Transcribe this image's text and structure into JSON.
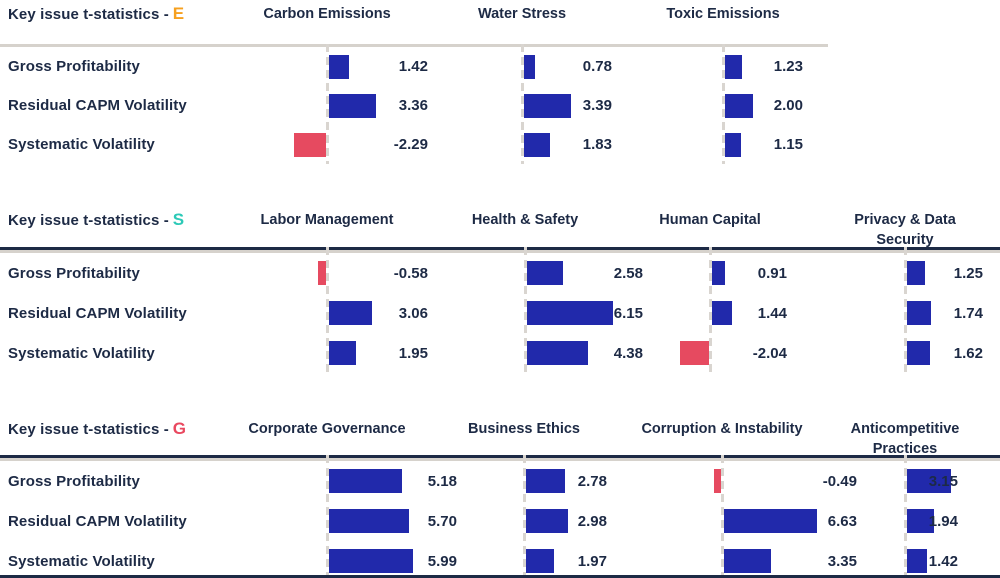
{
  "figure": {
    "name": "ESG key issue t-statistics",
    "background": "#ffffff"
  },
  "colors": {
    "text_navy": "#1d2a45",
    "bar_positive": "#2129ab",
    "bar_negative": "#e64a60",
    "pillar_e": "#f6a01f",
    "pillar_s": "#2cc9b7",
    "pillar_g": "#e9485f",
    "separator_gray": "#d6d2cc",
    "separator_navy": "#1d2a45",
    "baseline_dash": "#d9d5d0"
  },
  "chart_data": [
    {
      "type": "bar",
      "orientation": "horizontal",
      "title": "Key issue t-statistics - E",
      "title_prefix": "Key issue t-statistics -",
      "pillar": "E",
      "pillar_color": "#f6a01f",
      "rows": [
        "Gross Profitability",
        "Residual CAPM Volatility",
        "Systematic Volatility"
      ],
      "columns": [
        "Carbon Emissions",
        "Water Stress",
        "Toxic Emissions"
      ],
      "series": [
        {
          "name": "Carbon Emissions",
          "values": [
            1.42,
            3.36,
            -2.29
          ]
        },
        {
          "name": "Water Stress",
          "values": [
            0.78,
            3.39,
            1.83
          ]
        },
        {
          "name": "Toxic Emissions",
          "values": [
            1.23,
            2.0,
            1.15
          ]
        }
      ],
      "value_labels": [
        [
          "1.42",
          "3.36",
          "-2.29"
        ],
        [
          "0.78",
          "3.39",
          "1.83"
        ],
        [
          "1.23",
          "2.00",
          "1.15"
        ]
      ],
      "zero_baseline": true,
      "grid": "dashed-zero-line-per-column",
      "legend": "none"
    },
    {
      "type": "bar",
      "orientation": "horizontal",
      "title": "Key issue t-statistics - S",
      "title_prefix": "Key issue t-statistics -",
      "pillar": "S",
      "pillar_color": "#2cc9b7",
      "rows": [
        "Gross Profitability",
        "Residual CAPM Volatility",
        "Systematic Volatility"
      ],
      "columns": [
        "Labor Management",
        "Health & Safety",
        "Human Capital",
        "Privacy & Data Security"
      ],
      "series": [
        {
          "name": "Labor Management",
          "values": [
            -0.58,
            3.06,
            1.95
          ]
        },
        {
          "name": "Health & Safety",
          "values": [
            2.58,
            6.15,
            4.38
          ]
        },
        {
          "name": "Human Capital",
          "values": [
            0.91,
            1.44,
            -2.04
          ]
        },
        {
          "name": "Privacy & Data Security",
          "values": [
            1.25,
            1.74,
            1.62
          ]
        }
      ],
      "value_labels": [
        [
          "-0.58",
          "3.06",
          "1.95"
        ],
        [
          "2.58",
          "6.15",
          "4.38"
        ],
        [
          "0.91",
          "1.44",
          "-2.04"
        ],
        [
          "1.25",
          "1.74",
          "1.62"
        ]
      ],
      "zero_baseline": true,
      "grid": "dashed-zero-line-per-column",
      "legend": "none"
    },
    {
      "type": "bar",
      "orientation": "horizontal",
      "title": "Key issue t-statistics - G",
      "title_prefix": "Key issue t-statistics -",
      "pillar": "G",
      "pillar_color": "#e9485f",
      "rows": [
        "Gross Profitability",
        "Residual CAPM Volatility",
        "Systematic Volatility"
      ],
      "columns": [
        "Corporate Governance",
        "Business Ethics",
        "Corruption & Instability",
        "Anticompetitive Practices"
      ],
      "series": [
        {
          "name": "Corporate Governance",
          "values": [
            5.18,
            5.7,
            5.99
          ]
        },
        {
          "name": "Business Ethics",
          "values": [
            2.78,
            2.98,
            1.97
          ]
        },
        {
          "name": "Corruption & Instability",
          "values": [
            -0.49,
            6.63,
            3.35
          ]
        },
        {
          "name": "Anticompetitive Practices",
          "values": [
            3.15,
            1.94,
            1.42
          ]
        }
      ],
      "value_labels": [
        [
          "5.18",
          "5.70",
          "5.99"
        ],
        [
          "2.78",
          "2.98",
          "1.97"
        ],
        [
          "-0.49",
          "6.63",
          "3.35"
        ],
        [
          "3.15",
          "1.94",
          "1.42"
        ]
      ],
      "zero_baseline": true,
      "grid": "dashed-zero-line-per-column",
      "legend": "none"
    }
  ]
}
